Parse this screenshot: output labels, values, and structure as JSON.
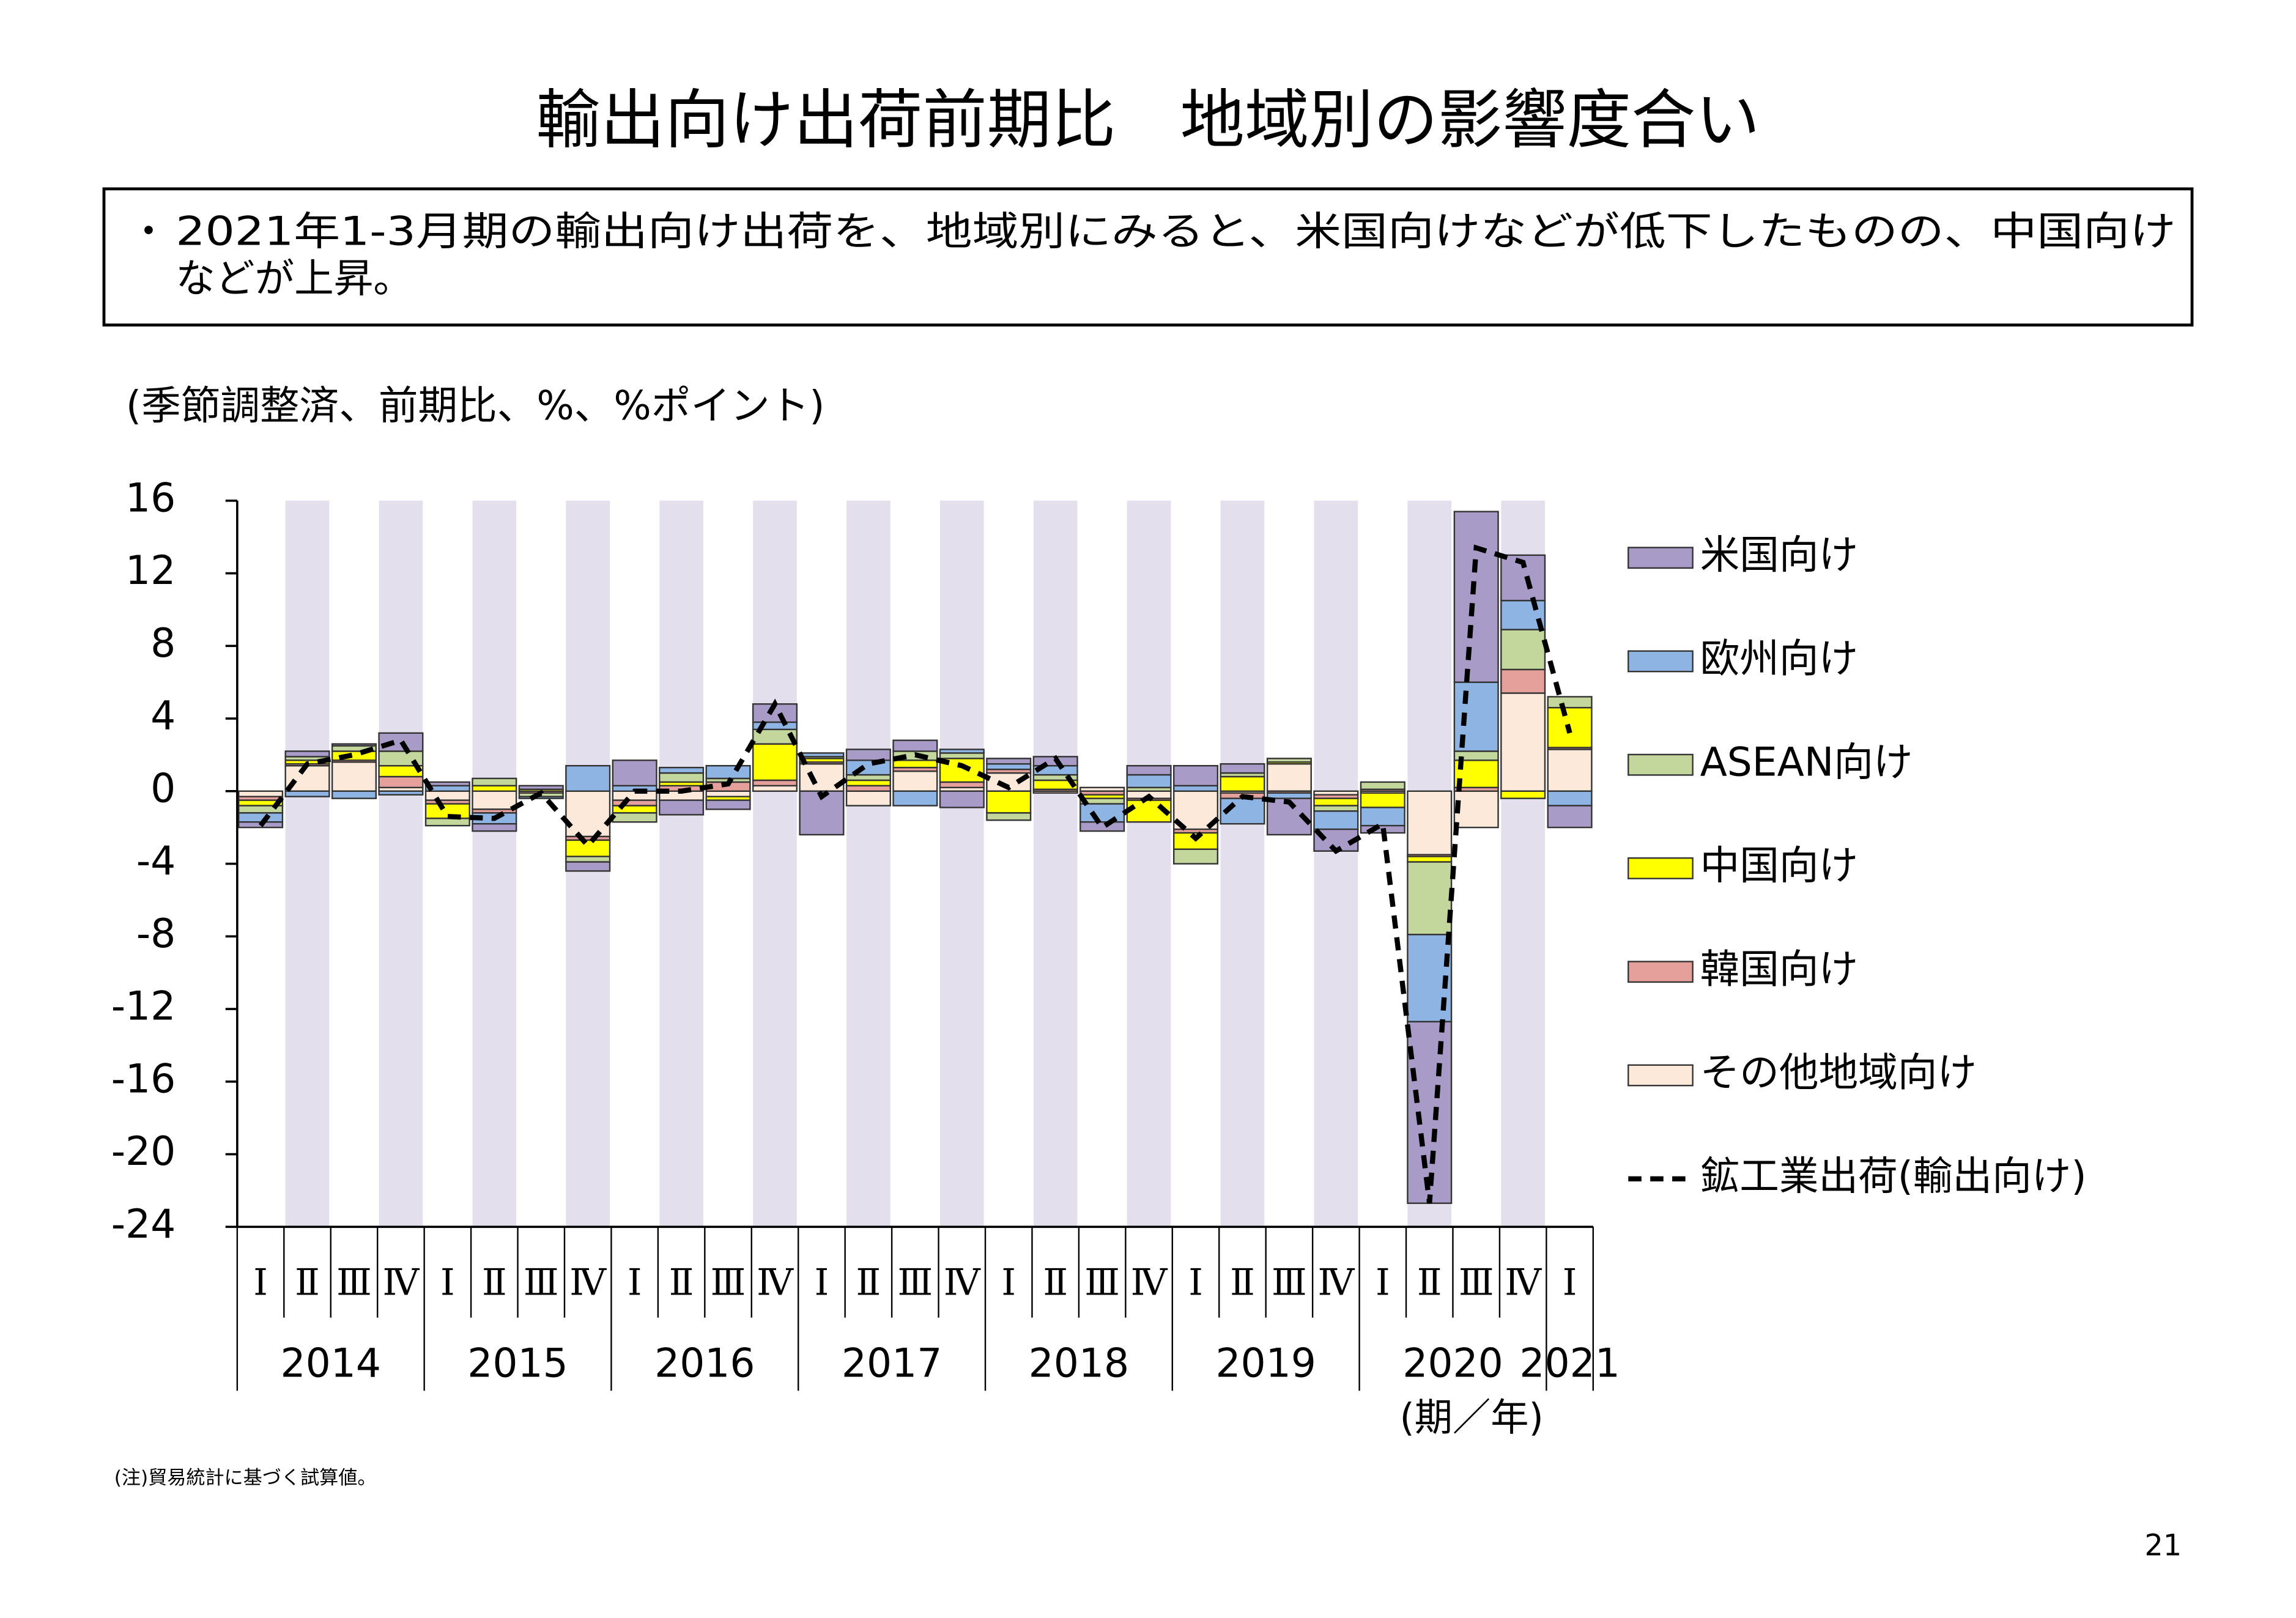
{
  "title": "輸出向け出荷前期比　地域別の影響度合い",
  "summary": {
    "bullet": "・",
    "lines": [
      "2021年1-3月期の輸出向け出荷を、地域別にみると、米国向けなどが低下したものの、中国向け",
      "などが上昇。"
    ]
  },
  "note": "(注)貿易統計に基づく試算値。",
  "page_number": "21",
  "chart_data": {
    "type": "stacked_bar_line",
    "unit_label": "(季節調整済、前期比、%、%ポイント)",
    "x_label": "(期／年)",
    "categories": [
      "Ⅰ",
      "Ⅱ",
      "Ⅲ",
      "Ⅳ",
      "Ⅰ",
      "Ⅱ",
      "Ⅲ",
      "Ⅳ",
      "Ⅰ",
      "Ⅱ",
      "Ⅲ",
      "Ⅳ",
      "Ⅰ",
      "Ⅱ",
      "Ⅲ",
      "Ⅳ",
      "Ⅰ",
      "Ⅱ",
      "Ⅲ",
      "Ⅳ",
      "Ⅰ",
      "Ⅱ",
      "Ⅲ",
      "Ⅳ",
      "Ⅰ",
      "Ⅱ",
      "Ⅲ",
      "Ⅳ",
      "Ⅰ"
    ],
    "years": [
      "2014",
      "2015",
      "2016",
      "2017",
      "2018",
      "2019",
      "2020",
      "2021"
    ],
    "ylim": [
      -24,
      16
    ],
    "yticks": [
      16,
      12,
      8,
      4,
      0,
      -4,
      -8,
      -12,
      -16,
      -20,
      -24
    ],
    "band_color": "#e4dfec",
    "series": [
      {
        "name": "米国向け",
        "type": "bar",
        "color": "#a99bc8",
        "values": [
          -0.3,
          0.3,
          0.1,
          1.0,
          0.2,
          -0.4,
          0.2,
          -0.5,
          1.4,
          -0.8,
          -0.5,
          1.0,
          -2.4,
          0.6,
          0.6,
          -0.9,
          0.3,
          0.5,
          -0.5,
          0.5,
          1.1,
          0.5,
          -2.0,
          -1.2,
          -0.4,
          -10,
          9.4,
          2.5,
          -1.2
        ]
      },
      {
        "name": "欧州向け",
        "type": "bar",
        "color": "#8eb4e3",
        "values": [
          -0.5,
          -0.3,
          -0.4,
          -0.2,
          0.3,
          -0.6,
          -0.1,
          1.4,
          0.3,
          0.3,
          0.7,
          0.4,
          0.2,
          0.8,
          -0.8,
          0.2,
          0.3,
          0.5,
          -1.0,
          0.7,
          0.3,
          -1.4,
          -0.3,
          -1.0,
          -1.0,
          -4.8,
          3.8,
          1.6,
          -0.8
        ]
      },
      {
        "name": "ASEAN向け",
        "type": "bar",
        "color": "#c3d69b",
        "values": [
          -0.4,
          0.2,
          0.3,
          0.8,
          -0.4,
          0.4,
          -0.2,
          -0.3,
          -0.5,
          0.5,
          0.2,
          0.8,
          0.1,
          0.3,
          0.5,
          0.3,
          -0.4,
          0.3,
          -0.3,
          0.2,
          -0.8,
          0.2,
          0.2,
          -0.3,
          0.4,
          -4.0,
          0.5,
          2.2,
          0.6
        ]
      },
      {
        "name": "中国向け",
        "type": "bar",
        "color": "#ffff00",
        "values": [
          -0.3,
          0.2,
          0.5,
          0.6,
          -0.8,
          0.3,
          0.1,
          -0.9,
          -0.4,
          0.2,
          -0.2,
          2.0,
          0.2,
          0.3,
          0.4,
          1.3,
          -1.2,
          0.5,
          -0.2,
          -1.2,
          -0.9,
          0.8,
          0.1,
          -0.4,
          -0.8,
          -0.3,
          1.5,
          -0.4,
          2.2
        ]
      },
      {
        "name": "韓国向け",
        "type": "bar",
        "color": "#e6a09c",
        "values": [
          -0.2,
          0.1,
          0.1,
          0.6,
          -0.2,
          -0.2,
          -0.1,
          -0.2,
          -0.3,
          0.3,
          0.5,
          0.3,
          0.1,
          0.3,
          0.2,
          0.3,
          0.2,
          0.1,
          -0.2,
          -0.1,
          -0.2,
          -0.3,
          -0.1,
          -0.2,
          0.1,
          -0.1,
          0.2,
          1.3,
          0.1
        ]
      },
      {
        "name": "その他地域向け",
        "type": "bar",
        "color": "#fde9d9",
        "values": [
          -0.3,
          1.4,
          1.6,
          0.2,
          -0.5,
          -1.0,
          0.0,
          -2.5,
          -0.5,
          -0.5,
          -0.3,
          0.3,
          1.5,
          -0.8,
          1.1,
          0.2,
          1.0,
          -0.1,
          0.2,
          -0.4,
          -2.1,
          -0.1,
          1.5,
          -0.2,
          -0.1,
          -3.5,
          -2.0,
          5.4,
          2.3
        ]
      },
      {
        "name": "鉱工業出荷(輸出向け)",
        "type": "line",
        "color": "#000000",
        "values": [
          -1.9,
          1.5,
          2.0,
          2.8,
          -1.4,
          -1.5,
          -0.1,
          -3.0,
          0.0,
          0.0,
          0.4,
          4.8,
          -0.3,
          1.5,
          2.0,
          1.4,
          0.2,
          1.8,
          -2.0,
          -0.3,
          -2.6,
          -0.3,
          -0.6,
          -3.3,
          -1.8,
          -22.7,
          13.4,
          12.6,
          3.2
        ]
      }
    ]
  }
}
